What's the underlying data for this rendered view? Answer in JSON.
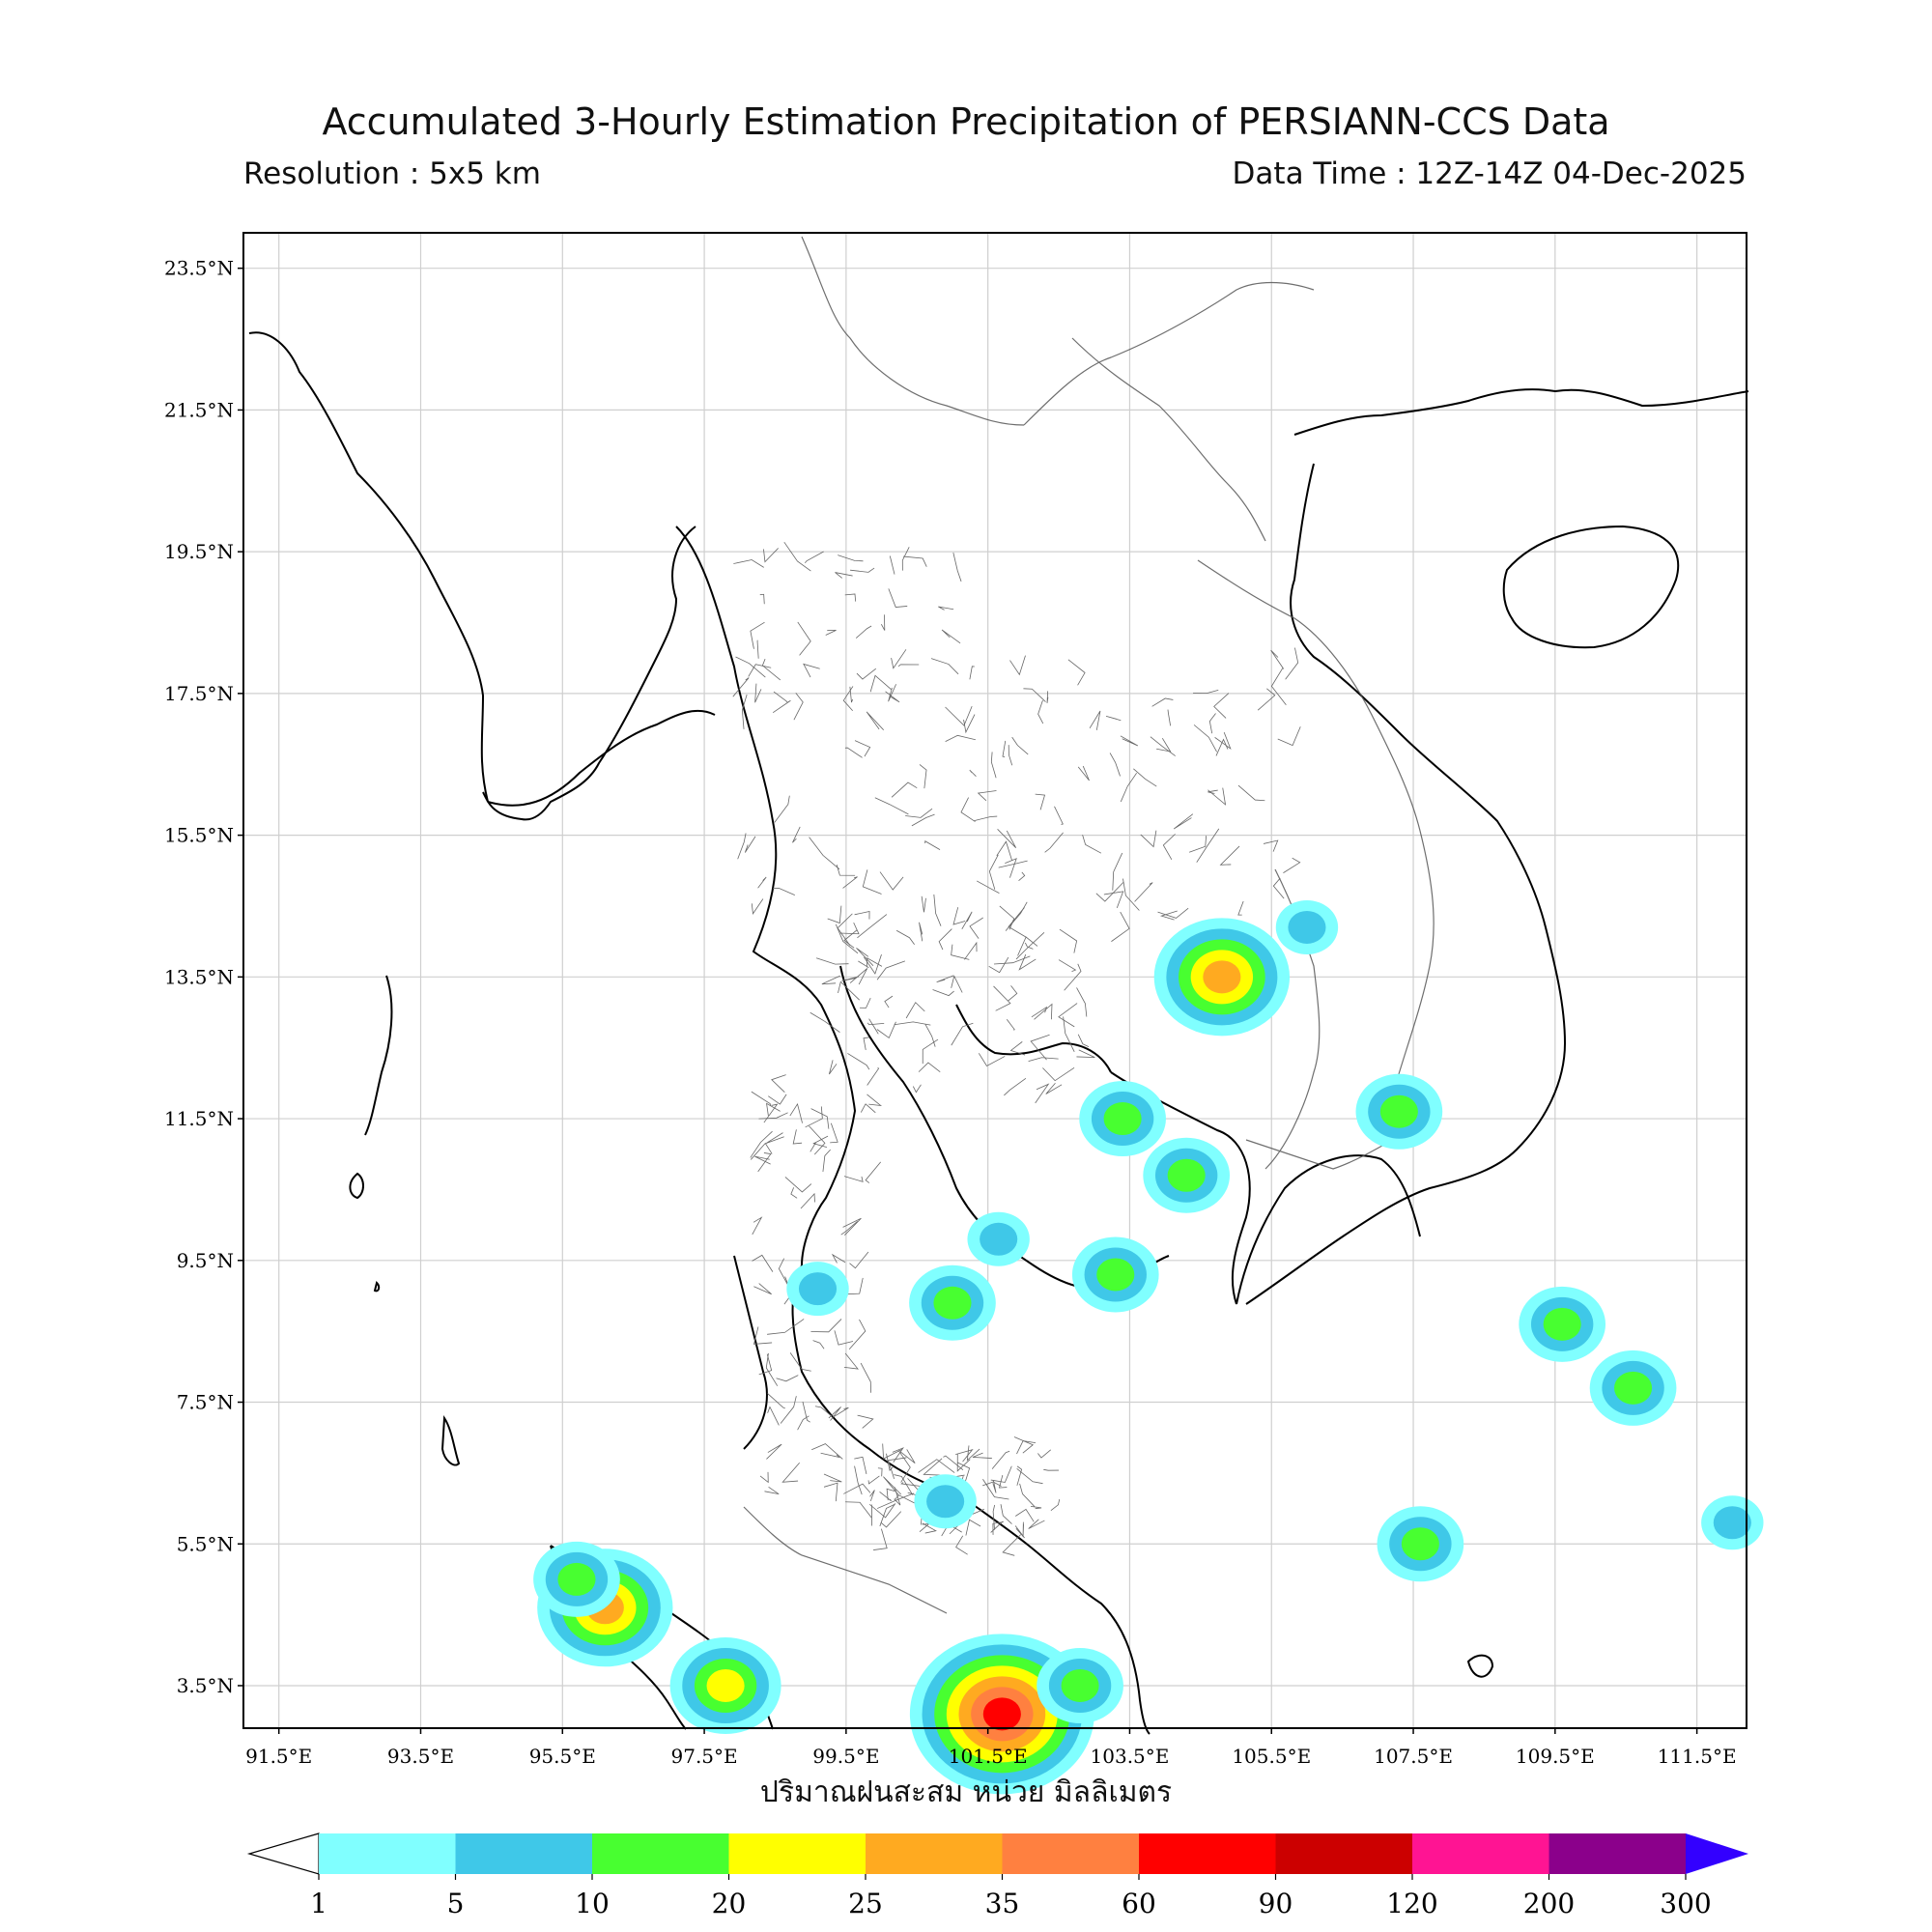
{
  "header": {
    "title": "Accumulated 3-Hourly Estimation Precipitation of PERSIANN-CCS Data",
    "resolution": "Resolution : 5x5 km",
    "data_time": "Data Time : 12Z-14Z 04-Dec-2025"
  },
  "map": {
    "lon_range": [
      91.0,
      112.2
    ],
    "lat_range": [
      2.9,
      24.0
    ],
    "lon_ticks": [
      "91.5°E",
      "93.5°E",
      "95.5°E",
      "97.5°E",
      "99.5°E",
      "101.5°E",
      "103.5°E",
      "105.5°E",
      "107.5°E",
      "109.5°E",
      "111.5°E"
    ],
    "lat_ticks": [
      "23.5°N",
      "21.5°N",
      "19.5°N",
      "17.5°N",
      "15.5°N",
      "13.5°N",
      "11.5°N",
      "9.5°N",
      "7.5°N",
      "5.5°N",
      "3.5°N"
    ],
    "grid": true
  },
  "colorbar": {
    "label": "ปริมาณฝนสะสม หน่วย มิลลิเมตร",
    "ticks": [
      "1",
      "5",
      "10",
      "20",
      "25",
      "35",
      "60",
      "90",
      "120",
      "200",
      "300"
    ],
    "colors": [
      "#80ffff",
      "#3fc8e8",
      "#48ff30",
      "#ffff00",
      "#ffaa20",
      "#ff8040",
      "#ff0000",
      "#cc0000",
      "#ff1493",
      "#8b008b",
      "#3300ff"
    ]
  },
  "rain_cells": [
    {
      "lon": 101.65,
      "lat": 9.8,
      "mm": 5
    },
    {
      "lon": 101.0,
      "lat": 8.9,
      "mm": 10
    },
    {
      "lon": 104.3,
      "lat": 10.7,
      "mm": 10
    },
    {
      "lon": 106.0,
      "lat": 14.2,
      "mm": 5
    },
    {
      "lon": 107.3,
      "lat": 11.6,
      "mm": 10
    },
    {
      "lon": 101.7,
      "lat": 3.1,
      "mm": 60
    },
    {
      "lon": 96.1,
      "lat": 4.6,
      "mm": 25
    },
    {
      "lon": 95.7,
      "lat": 5.0,
      "mm": 10
    },
    {
      "lon": 97.8,
      "lat": 3.5,
      "mm": 20
    },
    {
      "lon": 102.8,
      "lat": 3.5,
      "mm": 10
    },
    {
      "lon": 99.1,
      "lat": 9.1,
      "mm": 5
    },
    {
      "lon": 103.4,
      "lat": 11.5,
      "mm": 10
    },
    {
      "lon": 104.8,
      "lat": 13.5,
      "mm": 25
    },
    {
      "lon": 100.9,
      "lat": 6.1,
      "mm": 5
    },
    {
      "lon": 103.3,
      "lat": 9.3,
      "mm": 10
    },
    {
      "lon": 109.6,
      "lat": 8.6,
      "mm": 10
    },
    {
      "lon": 110.6,
      "lat": 7.7,
      "mm": 10
    },
    {
      "lon": 107.6,
      "lat": 5.5,
      "mm": 10
    },
    {
      "lon": 112.0,
      "lat": 5.8,
      "mm": 5
    }
  ]
}
